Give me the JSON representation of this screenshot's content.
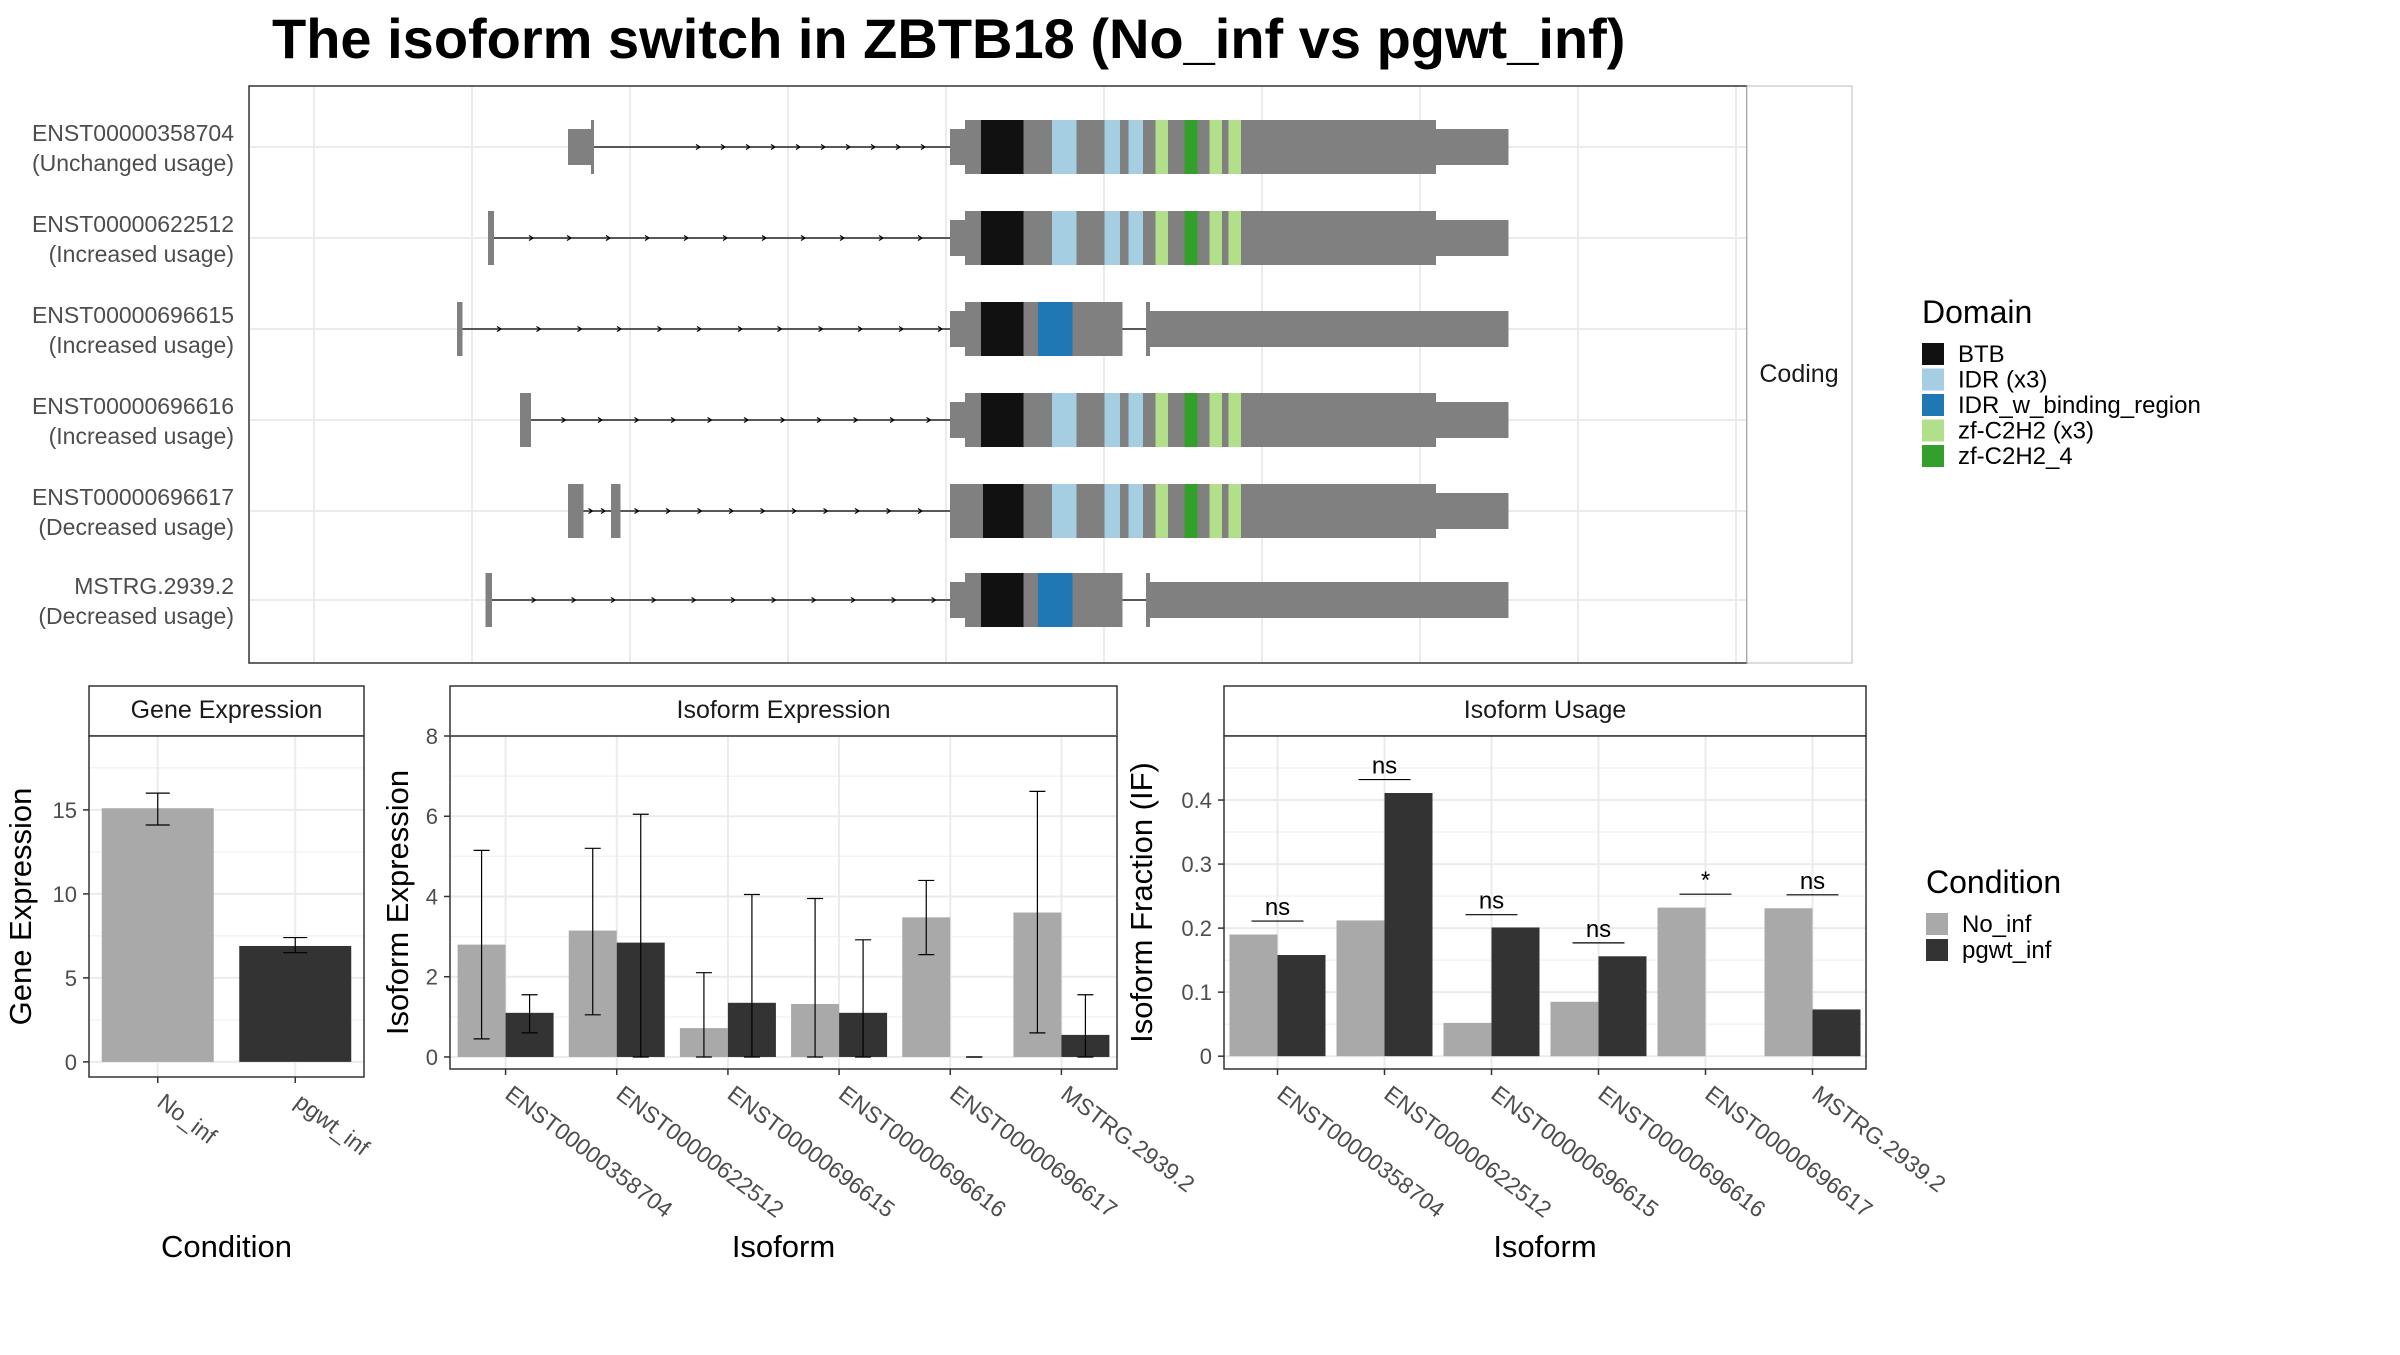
{
  "title": "The isoform switch in ZBTB18 (No_inf vs pgwt_inf)",
  "colors": {
    "intron": "#000000",
    "utr": "#808080",
    "cds": "#808080",
    "panel_border": "#333333",
    "grid": "#ebebeb",
    "strip_bg": "#ffffff",
    "No_inf": "#a9a9a9",
    "pgwt_inf": "#333333"
  },
  "structure": {
    "strip_label": "Coding",
    "legend_title": "Domain",
    "domains": [
      {
        "name": "BTB",
        "color": "#111111"
      },
      {
        "name": "IDR (x3)",
        "color": "#a6cee3"
      },
      {
        "name": "IDR_w_binding_region",
        "color": "#1f78b4"
      },
      {
        "name": "zf-C2H2 (x3)",
        "color": "#b2df8a"
      },
      {
        "name": "zf-C2H2_4",
        "color": "#33a02c"
      }
    ],
    "isoforms": [
      {
        "id": "ENST00000358704",
        "usage": "(Unchanged usage)",
        "exons": [
          [
            1136,
            1182,
            "utr"
          ],
          [
            1182,
            1188,
            "cds"
          ],
          [
            1900,
            1930,
            "utr"
          ],
          [
            1930,
            2872,
            "cds"
          ],
          [
            2872,
            3017,
            "utr"
          ]
        ],
        "domains": [
          [
            1962,
            2047,
            0
          ],
          [
            2104,
            2153,
            1
          ],
          [
            2209,
            2240,
            1
          ],
          [
            2257,
            2286,
            1
          ],
          [
            2311,
            2336,
            3
          ],
          [
            2369,
            2395,
            4
          ],
          [
            2419,
            2444,
            3
          ],
          [
            2457,
            2482,
            3
          ]
        ],
        "arrows": [
          1400,
          1450,
          1500,
          1550,
          1600,
          1650,
          1700,
          1750,
          1800,
          1850
        ]
      },
      {
        "id": "ENST00000622512",
        "usage": "(Increased usage)",
        "exons": [
          [
            976,
            988,
            "cds"
          ],
          [
            1900,
            1930,
            "utr"
          ],
          [
            1930,
            2872,
            "cds"
          ],
          [
            2872,
            3017,
            "utr"
          ]
        ],
        "domains": [
          [
            1962,
            2047,
            0
          ],
          [
            2104,
            2153,
            1
          ],
          [
            2209,
            2240,
            1
          ],
          [
            2257,
            2286,
            1
          ],
          [
            2311,
            2336,
            3
          ],
          [
            2369,
            2395,
            4
          ],
          [
            2419,
            2444,
            3
          ],
          [
            2457,
            2482,
            3
          ]
        ],
        "arrows": [
          1066,
          1142,
          1220,
          1298,
          1376,
          1454,
          1532,
          1610,
          1688,
          1766,
          1844
        ]
      },
      {
        "id": "ENST00000696615",
        "usage": "(Increased usage)",
        "exons": [
          [
            914,
            925,
            "cds"
          ],
          [
            1900,
            1930,
            "utr"
          ],
          [
            1930,
            2245,
            "cds"
          ],
          [
            2292,
            2300,
            "cds"
          ],
          [
            2300,
            3017,
            "utr"
          ]
        ],
        "domains": [
          [
            1962,
            2047,
            0
          ],
          [
            2076,
            2145,
            2
          ]
        ],
        "arrows": [
          1002,
          1081,
          1163,
          1242,
          1323,
          1402,
          1484,
          1563,
          1645,
          1724,
          1806,
          1884
        ]
      },
      {
        "id": "ENST00000696616",
        "usage": "(Increased usage)",
        "exons": [
          [
            1040,
            1062,
            "cds"
          ],
          [
            1900,
            1930,
            "utr"
          ],
          [
            1930,
            2872,
            "cds"
          ],
          [
            2872,
            3017,
            "utr"
          ]
        ],
        "domains": [
          [
            1962,
            2047,
            0
          ],
          [
            2104,
            2153,
            1
          ],
          [
            2209,
            2240,
            1
          ],
          [
            2257,
            2286,
            1
          ],
          [
            2311,
            2336,
            3
          ],
          [
            2369,
            2395,
            4
          ],
          [
            2419,
            2444,
            3
          ],
          [
            2457,
            2482,
            3
          ]
        ],
        "arrows": [
          1131,
          1204,
          1277,
          1350,
          1423,
          1496,
          1569,
          1642,
          1715,
          1788,
          1861
        ]
      },
      {
        "id": "ENST00000696617",
        "usage": "(Decreased usage)",
        "exons": [
          [
            1136,
            1167,
            "cds"
          ],
          [
            1222,
            1241,
            "cds"
          ],
          [
            1900,
            2872,
            "cds"
          ],
          [
            2872,
            3017,
            "utr"
          ]
        ],
        "domains": [
          [
            1966,
            2047,
            0
          ],
          [
            2104,
            2153,
            1
          ],
          [
            2209,
            2240,
            1
          ],
          [
            2257,
            2286,
            1
          ],
          [
            2311,
            2336,
            3
          ],
          [
            2369,
            2395,
            4
          ],
          [
            2419,
            2444,
            3
          ],
          [
            2457,
            2482,
            3
          ]
        ],
        "arrows": [
          1185,
          1210,
          1277,
          1340,
          1403,
          1466,
          1529,
          1592,
          1655,
          1718,
          1781,
          1844
        ]
      },
      {
        "id": "MSTRG.2939.2",
        "usage": "(Decreased usage)",
        "exons": [
          [
            971,
            984,
            "cds"
          ],
          [
            1900,
            1930,
            "utr"
          ],
          [
            1930,
            2245,
            "cds"
          ],
          [
            2292,
            2300,
            "cds"
          ],
          [
            2300,
            3017,
            "utr"
          ]
        ],
        "domains": [
          [
            1962,
            2047,
            0
          ],
          [
            2076,
            2145,
            2
          ]
        ],
        "arrows": [
          1071,
          1151,
          1230,
          1311,
          1391,
          1470,
          1551,
          1631,
          1710,
          1791,
          1871
        ]
      }
    ]
  },
  "chart_data": [
    {
      "type": "bar",
      "title": "Gene Expression",
      "xlabel": "Condition",
      "ylabel": "Gene Expression",
      "categories": [
        "No_inf",
        "pgwt_inf"
      ],
      "values": [
        15.1,
        6.9
      ],
      "error_low": [
        14.1,
        6.5
      ],
      "error_high": [
        16.0,
        7.4
      ],
      "ylim": [
        -0.9,
        19.4
      ],
      "yticks": [
        0,
        5,
        10,
        15
      ],
      "grid": true
    },
    {
      "type": "bar",
      "title": "Isoform Expression",
      "xlabel": "Isoform",
      "ylabel": "Isoform Expression",
      "categories": [
        "ENST00000358704",
        "ENST00000622512",
        "ENST00000696615",
        "ENST00000696616",
        "ENST00000696617",
        "MSTRG.2939.2"
      ],
      "series": [
        {
          "name": "No_inf",
          "values": [
            2.8,
            3.15,
            0.72,
            1.32,
            3.48,
            3.6
          ],
          "error_low": [
            0.45,
            1.05,
            0.0,
            0.0,
            2.55,
            0.6
          ],
          "error_high": [
            5.15,
            5.2,
            2.1,
            3.95,
            4.4,
            6.62
          ]
        },
        {
          "name": "pgwt_inf",
          "values": [
            1.1,
            2.85,
            1.35,
            1.1,
            0.0,
            0.55
          ],
          "error_low": [
            0.6,
            0.0,
            0.0,
            0.0,
            0.0,
            0.0
          ],
          "error_high": [
            1.55,
            6.05,
            4.05,
            2.92,
            0.0,
            1.55
          ]
        }
      ],
      "ylim": [
        -0.3,
        8.0
      ],
      "yticks": [
        0,
        2,
        4,
        6,
        8
      ],
      "grid": true
    },
    {
      "type": "bar",
      "title": "Isoform Usage",
      "xlabel": "Isoform",
      "ylabel": "Isoform Fraction (IF)",
      "categories": [
        "ENST00000358704",
        "ENST00000622512",
        "ENST00000696615",
        "ENST00000696616",
        "ENST00000696617",
        "MSTRG.2939.2"
      ],
      "series": [
        {
          "name": "No_inf",
          "values": [
            0.19,
            0.212,
            0.052,
            0.085,
            0.232,
            0.231
          ]
        },
        {
          "name": "pgwt_inf",
          "values": [
            0.158,
            0.411,
            0.201,
            0.156,
            0.0,
            0.073
          ]
        }
      ],
      "significance": [
        "ns",
        "ns",
        "ns",
        "ns",
        "*",
        "ns"
      ],
      "sig_y": [
        0.211,
        0.432,
        0.221,
        0.177,
        0.253,
        0.252
      ],
      "ylim": [
        -0.02,
        0.5
      ],
      "yticks": [
        0.0,
        0.1,
        0.2,
        0.3,
        0.4
      ],
      "grid": true
    }
  ],
  "condition_legend": {
    "title": "Condition",
    "items": [
      "No_inf",
      "pgwt_inf"
    ]
  }
}
